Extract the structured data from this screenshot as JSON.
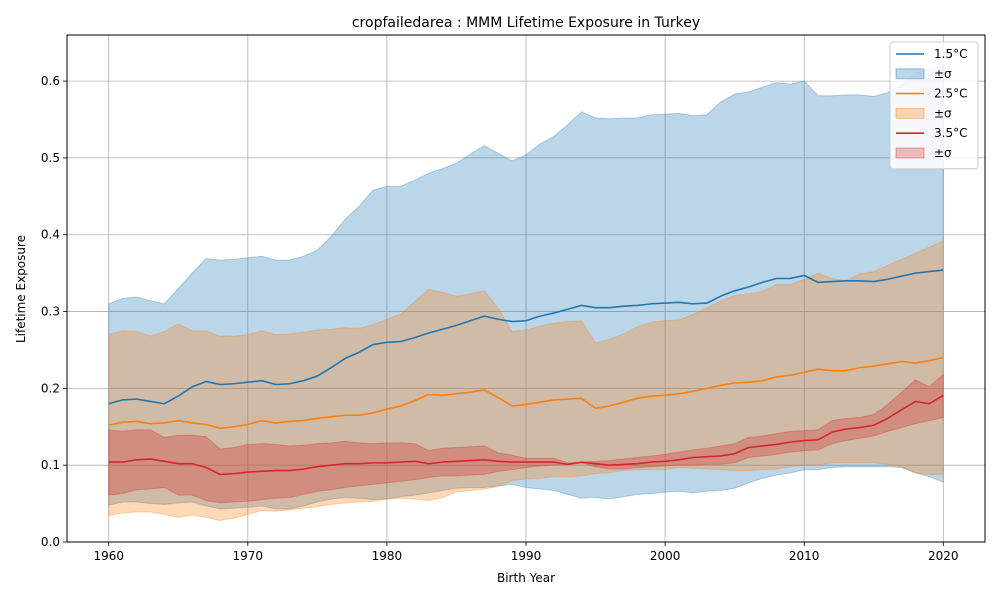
{
  "chart_data": {
    "type": "line",
    "title": "cropfailedarea : MMM Lifetime Exposure in Turkey",
    "xlabel": "Birth Year",
    "ylabel": "Lifetime Exposure",
    "xlim": [
      1957,
      2023
    ],
    "ylim": [
      0,
      0.66
    ],
    "xticks": [
      1960,
      1970,
      1980,
      1990,
      2000,
      2010,
      2020
    ],
    "yticks": [
      0.0,
      0.1,
      0.2,
      0.3,
      0.4,
      0.5,
      0.6
    ],
    "xtick_labels": [
      "1960",
      "1970",
      "1980",
      "1990",
      "2000",
      "2010",
      "2020"
    ],
    "ytick_labels": [
      "0.0",
      "0.1",
      "0.2",
      "0.3",
      "0.4",
      "0.5",
      "0.6"
    ],
    "grid": true,
    "legend_position": "top-right",
    "x": [
      1960,
      1961,
      1962,
      1963,
      1964,
      1965,
      1966,
      1967,
      1968,
      1969,
      1970,
      1971,
      1972,
      1973,
      1974,
      1975,
      1976,
      1977,
      1978,
      1979,
      1980,
      1981,
      1982,
      1983,
      1984,
      1985,
      1986,
      1987,
      1988,
      1989,
      1990,
      1991,
      1992,
      1993,
      1994,
      1995,
      1996,
      1997,
      1998,
      1999,
      2000,
      2001,
      2002,
      2003,
      2004,
      2005,
      2006,
      2007,
      2008,
      2009,
      2010,
      2011,
      2012,
      2013,
      2014,
      2015,
      2016,
      2017,
      2018,
      2019,
      2020
    ],
    "series": [
      {
        "name": "1.5°C",
        "band_label": "±σ",
        "color": "#1f77b4",
        "fill": "#1f77b4",
        "fill_opacity": 0.3,
        "mean": [
          0.18,
          0.185,
          0.186,
          0.183,
          0.18,
          0.19,
          0.202,
          0.209,
          0.205,
          0.206,
          0.208,
          0.21,
          0.205,
          0.206,
          0.21,
          0.216,
          0.227,
          0.239,
          0.247,
          0.257,
          0.26,
          0.261,
          0.266,
          0.272,
          0.277,
          0.282,
          0.288,
          0.294,
          0.29,
          0.287,
          0.288,
          0.294,
          0.298,
          0.303,
          0.308,
          0.305,
          0.305,
          0.307,
          0.308,
          0.31,
          0.311,
          0.312,
          0.31,
          0.311,
          0.32,
          0.327,
          0.332,
          0.338,
          0.343,
          0.343,
          0.347,
          0.338,
          0.339,
          0.34,
          0.34,
          0.339,
          0.342,
          0.346,
          0.35,
          0.352,
          0.354
        ],
        "upper": [
          0.31,
          0.317,
          0.319,
          0.314,
          0.31,
          0.33,
          0.35,
          0.369,
          0.367,
          0.368,
          0.37,
          0.372,
          0.367,
          0.367,
          0.372,
          0.38,
          0.398,
          0.42,
          0.437,
          0.458,
          0.463,
          0.463,
          0.471,
          0.48,
          0.486,
          0.493,
          0.505,
          0.516,
          0.506,
          0.496,
          0.504,
          0.518,
          0.528,
          0.543,
          0.56,
          0.552,
          0.551,
          0.552,
          0.552,
          0.556,
          0.557,
          0.558,
          0.555,
          0.556,
          0.573,
          0.583,
          0.586,
          0.592,
          0.598,
          0.596,
          0.6,
          0.581,
          0.581,
          0.582,
          0.582,
          0.58,
          0.585,
          0.595,
          0.61,
          0.615,
          0.62
        ],
        "lower": [
          0.048,
          0.052,
          0.052,
          0.05,
          0.049,
          0.051,
          0.052,
          0.047,
          0.043,
          0.044,
          0.045,
          0.047,
          0.043,
          0.043,
          0.047,
          0.052,
          0.056,
          0.058,
          0.057,
          0.055,
          0.056,
          0.059,
          0.061,
          0.064,
          0.067,
          0.07,
          0.071,
          0.071,
          0.073,
          0.075,
          0.071,
          0.069,
          0.067,
          0.062,
          0.057,
          0.058,
          0.056,
          0.059,
          0.062,
          0.063,
          0.065,
          0.066,
          0.064,
          0.066,
          0.067,
          0.07,
          0.077,
          0.083,
          0.087,
          0.09,
          0.094,
          0.094,
          0.097,
          0.098,
          0.098,
          0.098,
          0.098,
          0.097,
          0.09,
          0.085,
          0.078
        ]
      },
      {
        "name": "2.5°C",
        "band_label": "±σ",
        "color": "#ff7f0e",
        "fill": "#ff7f0e",
        "fill_opacity": 0.3,
        "mean": [
          0.152,
          0.156,
          0.157,
          0.154,
          0.155,
          0.158,
          0.155,
          0.153,
          0.148,
          0.15,
          0.153,
          0.158,
          0.155,
          0.157,
          0.158,
          0.161,
          0.163,
          0.165,
          0.165,
          0.168,
          0.173,
          0.177,
          0.184,
          0.192,
          0.191,
          0.193,
          0.195,
          0.198,
          0.188,
          0.177,
          0.179,
          0.182,
          0.185,
          0.186,
          0.187,
          0.174,
          0.177,
          0.182,
          0.187,
          0.19,
          0.191,
          0.193,
          0.196,
          0.2,
          0.204,
          0.207,
          0.208,
          0.21,
          0.215,
          0.217,
          0.221,
          0.225,
          0.223,
          0.223,
          0.227,
          0.229,
          0.232,
          0.235,
          0.233,
          0.236,
          0.24
        ],
        "upper": [
          0.27,
          0.275,
          0.274,
          0.268,
          0.274,
          0.284,
          0.275,
          0.275,
          0.268,
          0.268,
          0.27,
          0.275,
          0.27,
          0.271,
          0.273,
          0.276,
          0.277,
          0.279,
          0.278,
          0.283,
          0.29,
          0.297,
          0.313,
          0.329,
          0.325,
          0.32,
          0.323,
          0.327,
          0.304,
          0.274,
          0.276,
          0.281,
          0.285,
          0.287,
          0.288,
          0.259,
          0.264,
          0.271,
          0.28,
          0.286,
          0.288,
          0.289,
          0.296,
          0.305,
          0.314,
          0.321,
          0.323,
          0.326,
          0.335,
          0.335,
          0.342,
          0.35,
          0.343,
          0.34,
          0.349,
          0.352,
          0.36,
          0.368,
          0.376,
          0.384,
          0.392
        ],
        "lower": [
          0.034,
          0.038,
          0.039,
          0.039,
          0.036,
          0.032,
          0.035,
          0.032,
          0.028,
          0.031,
          0.036,
          0.041,
          0.04,
          0.042,
          0.044,
          0.046,
          0.049,
          0.051,
          0.052,
          0.053,
          0.056,
          0.057,
          0.056,
          0.054,
          0.058,
          0.065,
          0.067,
          0.069,
          0.072,
          0.08,
          0.082,
          0.083,
          0.085,
          0.085,
          0.086,
          0.089,
          0.09,
          0.093,
          0.094,
          0.094,
          0.094,
          0.097,
          0.096,
          0.095,
          0.094,
          0.093,
          0.093,
          0.094,
          0.095,
          0.098,
          0.1,
          0.1,
          0.103,
          0.103,
          0.103,
          0.103,
          0.101,
          0.098,
          0.09,
          0.088,
          0.088
        ]
      },
      {
        "name": "3.5°C",
        "band_label": "±σ",
        "color": "#d62728",
        "fill": "#d62728",
        "fill_opacity": 0.3,
        "mean": [
          0.104,
          0.104,
          0.107,
          0.108,
          0.105,
          0.102,
          0.102,
          0.097,
          0.088,
          0.089,
          0.091,
          0.092,
          0.093,
          0.093,
          0.095,
          0.098,
          0.1,
          0.102,
          0.102,
          0.103,
          0.103,
          0.104,
          0.105,
          0.102,
          0.104,
          0.105,
          0.106,
          0.107,
          0.105,
          0.104,
          0.104,
          0.104,
          0.104,
          0.101,
          0.104,
          0.102,
          0.1,
          0.101,
          0.102,
          0.104,
          0.105,
          0.107,
          0.11,
          0.111,
          0.112,
          0.115,
          0.123,
          0.125,
          0.127,
          0.13,
          0.132,
          0.133,
          0.143,
          0.147,
          0.149,
          0.152,
          0.161,
          0.172,
          0.183,
          0.18,
          0.191
        ],
        "upper": [
          0.146,
          0.144,
          0.146,
          0.146,
          0.136,
          0.139,
          0.139,
          0.137,
          0.121,
          0.123,
          0.127,
          0.128,
          0.127,
          0.125,
          0.126,
          0.128,
          0.129,
          0.131,
          0.129,
          0.128,
          0.129,
          0.129,
          0.128,
          0.119,
          0.122,
          0.123,
          0.124,
          0.125,
          0.116,
          0.113,
          0.109,
          0.109,
          0.109,
          0.103,
          0.104,
          0.105,
          0.106,
          0.108,
          0.11,
          0.112,
          0.114,
          0.117,
          0.12,
          0.122,
          0.125,
          0.128,
          0.136,
          0.138,
          0.141,
          0.144,
          0.145,
          0.146,
          0.158,
          0.161,
          0.162,
          0.166,
          0.179,
          0.195,
          0.211,
          0.202,
          0.218
        ],
        "lower": [
          0.061,
          0.063,
          0.068,
          0.069,
          0.071,
          0.061,
          0.061,
          0.054,
          0.051,
          0.052,
          0.053,
          0.055,
          0.057,
          0.058,
          0.062,
          0.066,
          0.068,
          0.071,
          0.073,
          0.075,
          0.077,
          0.079,
          0.081,
          0.084,
          0.086,
          0.086,
          0.087,
          0.088,
          0.092,
          0.094,
          0.097,
          0.099,
          0.1,
          0.101,
          0.103,
          0.098,
          0.095,
          0.095,
          0.097,
          0.098,
          0.099,
          0.1,
          0.1,
          0.101,
          0.101,
          0.103,
          0.11,
          0.112,
          0.114,
          0.117,
          0.119,
          0.12,
          0.128,
          0.132,
          0.135,
          0.138,
          0.144,
          0.149,
          0.154,
          0.158,
          0.162
        ]
      }
    ]
  }
}
